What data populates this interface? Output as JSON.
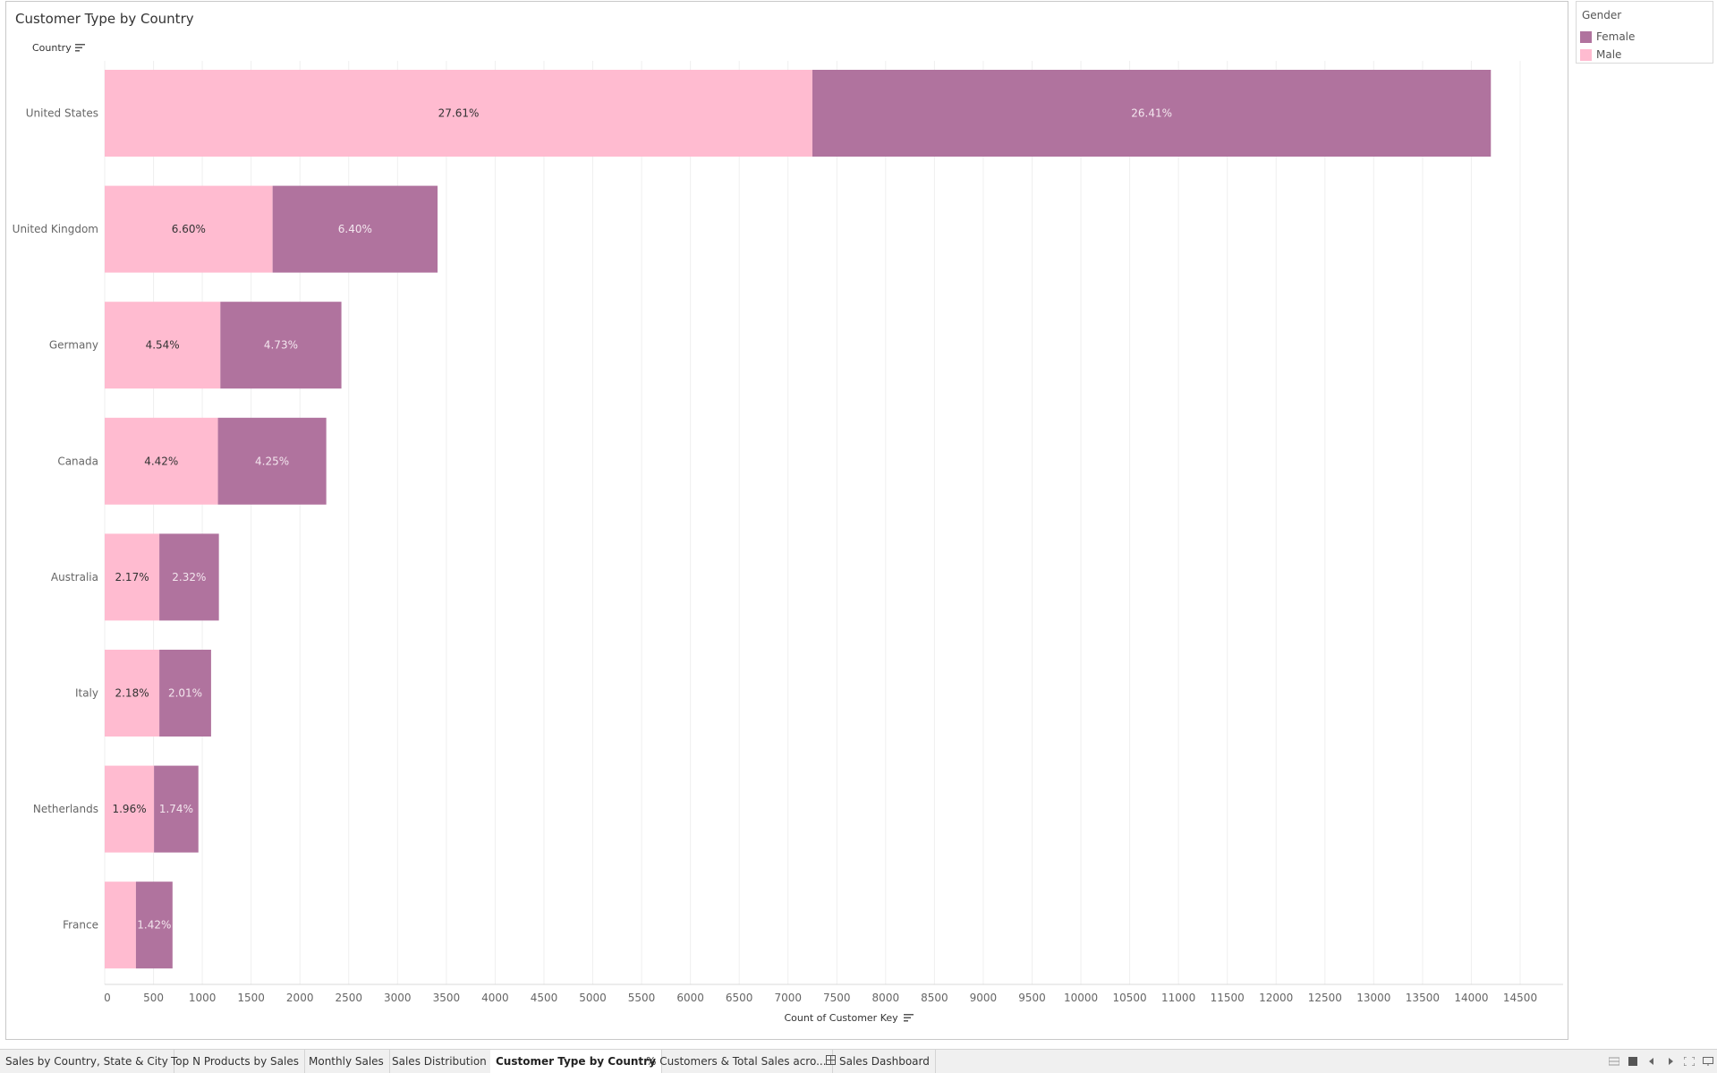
{
  "chart_data": {
    "type": "bar",
    "orientation": "horizontal",
    "stacked": true,
    "title": "Customer Type by Country",
    "row_header": "Country",
    "xlabel": "Count of Customer Key",
    "xlim": [
      0,
      15000
    ],
    "xticks": [
      "0",
      "500",
      "1000",
      "1500",
      "2000",
      "2500",
      "3000",
      "3500",
      "4000",
      "4500",
      "5000",
      "5500",
      "6000",
      "6500",
      "7000",
      "7500",
      "8000",
      "8500",
      "9000",
      "9500",
      "10000",
      "10500",
      "11000",
      "11500",
      "12000",
      "12500",
      "13000",
      "13500",
      "14000",
      "14500"
    ],
    "grid": true,
    "categories": [
      "United States",
      "United Kingdom",
      "Germany",
      "Canada",
      "Australia",
      "Italy",
      "Netherlands",
      "France"
    ],
    "series": [
      {
        "name": "Male",
        "color": "#ffbbd0",
        "values": [
          7250,
          1720,
          1185,
          1160,
          560,
          560,
          505,
          320
        ],
        "labels": [
          "27.61%",
          "6.60%",
          "4.54%",
          "4.42%",
          "2.17%",
          "2.18%",
          "1.96%",
          ""
        ]
      },
      {
        "name": "Female",
        "color": "#b0739e",
        "values": [
          6950,
          1690,
          1240,
          1110,
          610,
          530,
          455,
          375
        ],
        "labels": [
          "26.41%",
          "6.40%",
          "4.73%",
          "4.25%",
          "2.32%",
          "2.01%",
          "1.74%",
          "1.42%"
        ]
      }
    ],
    "legend": {
      "title": "Gender",
      "position": "top-right",
      "items": [
        {
          "label": "Female",
          "color": "#b0739e"
        },
        {
          "label": "Male",
          "color": "#ffbbd0"
        }
      ]
    }
  },
  "tabs": [
    {
      "label": "Sales by Country, State & City",
      "active": false
    },
    {
      "label": "Top N Products by Sales",
      "active": false
    },
    {
      "label": "Monthly Sales",
      "active": false
    },
    {
      "label": "Sales Distribution",
      "active": false
    },
    {
      "label": "Customer Type by Country",
      "active": true
    },
    {
      "label": "% Customers & Total Sales acro...",
      "active": false
    },
    {
      "label": "Sales Dashboard",
      "active": false,
      "icon": "dashboard-icon"
    }
  ],
  "colors": {
    "male": "#ffbbd0",
    "female": "#b0739e",
    "grid": "#efefef",
    "label_dark": "#333333",
    "label_light": "#f3e6ee"
  }
}
